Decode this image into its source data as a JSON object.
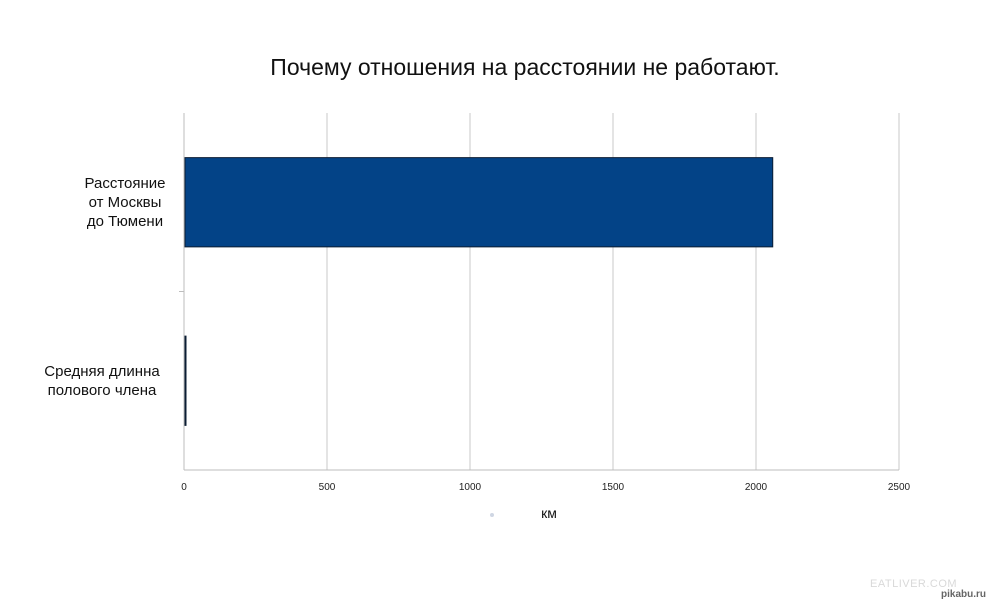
{
  "chart_data": {
    "type": "bar",
    "orientation": "horizontal",
    "title": "Почему отношения на расстоянии не работают.",
    "categories": [
      "Расстояние\nот Москвы\nдо Тюмени",
      "Средняя длинна\nполового члена"
    ],
    "values": [
      2055,
      0.00015
    ],
    "xlabel": "км",
    "ylabel": "",
    "xlim": [
      0,
      2500
    ],
    "ticks": [
      "0",
      "500",
      "1000",
      "1500",
      "2000",
      "2500"
    ],
    "tick_values": [
      0,
      500,
      1000,
      1500,
      2000,
      2500
    ],
    "grid": true,
    "legend": "none",
    "colors": {
      "bar": "#034387",
      "bar_edge": "#0b1d33",
      "grid": "#c8c8c8"
    }
  },
  "watermarks": [
    "EATLIVER.COM",
    "pikabu.ru"
  ]
}
